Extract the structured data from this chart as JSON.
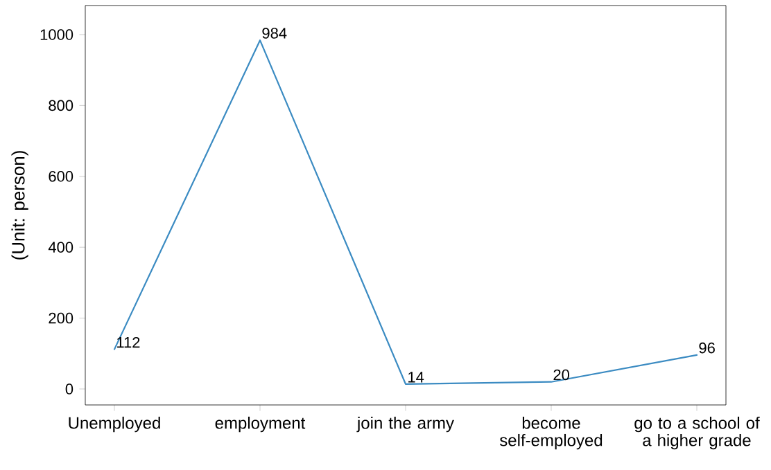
{
  "chart_data": {
    "type": "line",
    "ylabel": "(Unit: person)",
    "categories": [
      "Unemployed",
      "employment",
      "join the army",
      "become self-employed",
      "go to a school of a higher grade"
    ],
    "values": [
      112,
      984,
      14,
      20,
      96
    ],
    "color": "#3b8bc2",
    "ylim": [
      -45,
      1082
    ],
    "yticks": [
      0,
      200,
      400,
      600,
      800,
      1000
    ],
    "data_labels": true,
    "grid": false,
    "marker": "none",
    "line_style": "solid"
  }
}
